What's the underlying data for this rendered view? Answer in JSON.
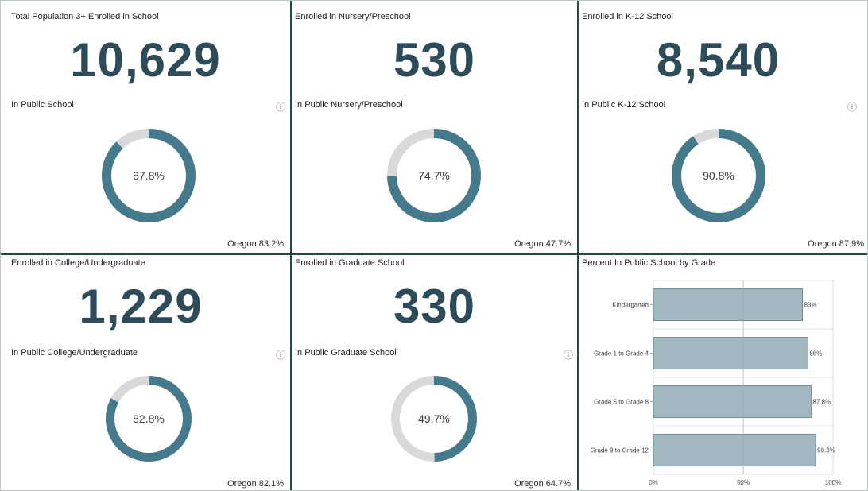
{
  "panels": [
    {
      "title": "Total Population 3+ Enrolled in School",
      "value": "10,629",
      "subtitle": "In Public School",
      "percent": 87.8,
      "percent_label": "87.8%",
      "reference": "Oregon 83.2%",
      "info": true
    },
    {
      "title": "Enrolled in Nursery/Preschool",
      "value": "530",
      "subtitle": "In Public Nursery/Preschool",
      "percent": 74.7,
      "percent_label": "74.7%",
      "reference": "Oregon 47.7%",
      "info": false
    },
    {
      "title": "Enrolled in K-12 School",
      "value": "8,540",
      "subtitle": "In Public K-12 School",
      "percent": 90.8,
      "percent_label": "90.8%",
      "reference": "Oregon 87.9%",
      "info": true
    },
    {
      "title": "Enrolled in College/Undergraduate",
      "value": "1,229",
      "subtitle": "In Public College/Undergraduate",
      "percent": 82.8,
      "percent_label": "82.8%",
      "reference": "Oregon 82.1%",
      "info": true
    },
    {
      "title": "Enrolled in Graduate School",
      "value": "330",
      "subtitle": "In Public Graduate School",
      "percent": 49.7,
      "percent_label": "49.7%",
      "reference": "Oregon 64.7%",
      "info": true
    }
  ],
  "colors": {
    "accent": "#447a8c",
    "track": "#d9d9d9",
    "bar": "#a2b8c0",
    "bar_stroke": "#5f7f8a",
    "divider": "#1d4d44",
    "number": "#2e4b5a"
  },
  "info_icon": "info-circle-icon",
  "chart_data": {
    "type": "bar",
    "orientation": "horizontal",
    "title": "Percent In Public School by Grade",
    "categories": [
      "Kindergarten",
      "Grade 1 to Grade 4",
      "Grade 5 to Grade 8",
      "Grade 9 to Grade 12"
    ],
    "values": [
      83,
      86,
      87.8,
      90.3
    ],
    "value_labels": [
      "83%",
      "86%",
      "87.8%",
      "90.3%"
    ],
    "xlim": [
      0,
      100
    ],
    "xticks": [
      "0%",
      "50%",
      "100%"
    ],
    "grid": true
  }
}
